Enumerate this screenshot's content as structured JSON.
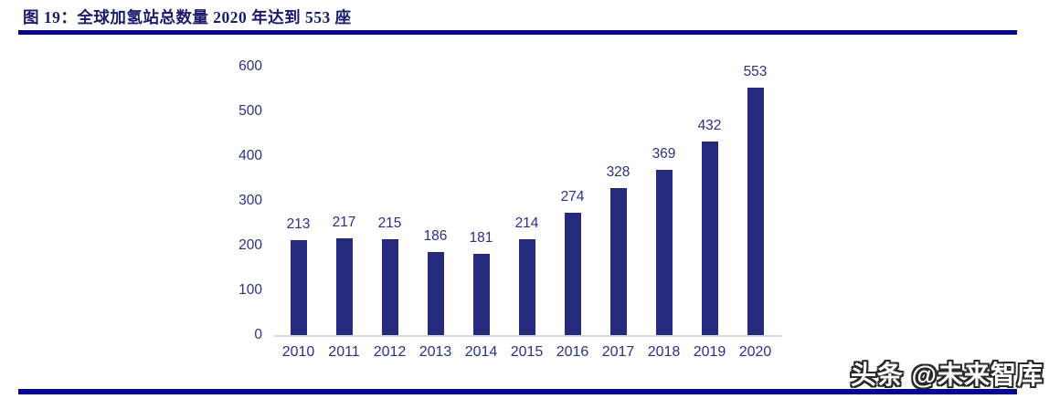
{
  "header": {
    "title": "图 19：全球加氢站总数量 2020 年达到 553 座"
  },
  "footer": {
    "watermark": "头条 @未来智库"
  },
  "colors": {
    "bar": "#262a7c",
    "label": "#2b3087",
    "title": "#1a1a6e",
    "rule": "#06068c",
    "axis_line": "#d9d9d9",
    "background": "#ffffff"
  },
  "chart_data": {
    "type": "bar",
    "title": "全球加氢站总数量 2020 年达到 553 座",
    "categories": [
      "2010",
      "2011",
      "2012",
      "2013",
      "2014",
      "2015",
      "2016",
      "2017",
      "2018",
      "2019",
      "2020"
    ],
    "values": [
      213,
      217,
      215,
      186,
      181,
      214,
      274,
      328,
      369,
      432,
      553
    ],
    "xlabel": "",
    "ylabel": "",
    "ylim": [
      0,
      600
    ],
    "ytick_step": 100,
    "yticks": [
      0,
      100,
      200,
      300,
      400,
      500,
      600
    ],
    "grid": false,
    "legend": false,
    "data_labels": true
  }
}
